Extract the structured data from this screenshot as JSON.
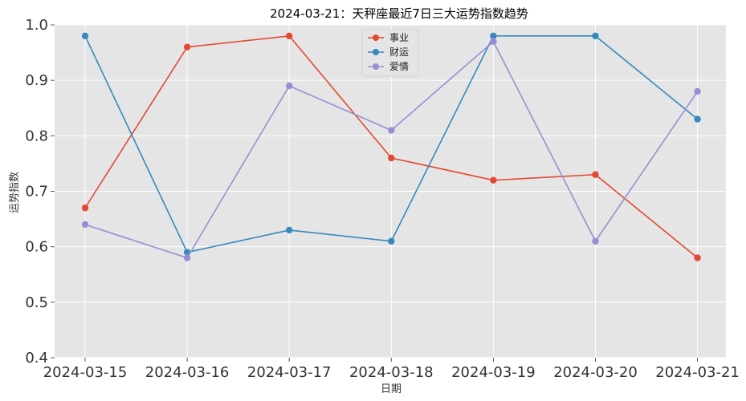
{
  "chart_data": {
    "type": "line",
    "title": "2024-03-21：天秤座最近7日三大运势指数趋势",
    "xlabel": "日期",
    "ylabel": "运势指数",
    "categories": [
      "2024-03-15",
      "2024-03-16",
      "2024-03-17",
      "2024-03-18",
      "2024-03-19",
      "2024-03-20",
      "2024-03-21"
    ],
    "ylim": [
      0.4,
      1.0
    ],
    "yticks": [
      "0.4",
      "0.5",
      "0.6",
      "0.7",
      "0.8",
      "0.9",
      "1.0"
    ],
    "grid": true,
    "legend_position": "top-center",
    "series": [
      {
        "name": "事业",
        "color": "#E24A33",
        "values": [
          0.67,
          0.96,
          0.98,
          0.76,
          0.72,
          0.73,
          0.58
        ]
      },
      {
        "name": "财运",
        "color": "#348ABD",
        "values": [
          0.98,
          0.59,
          0.63,
          0.61,
          0.98,
          0.98,
          0.83
        ]
      },
      {
        "name": "爱情",
        "color": "#988ED5",
        "values": [
          0.64,
          0.58,
          0.89,
          0.81,
          0.97,
          0.61,
          0.88
        ]
      }
    ]
  }
}
